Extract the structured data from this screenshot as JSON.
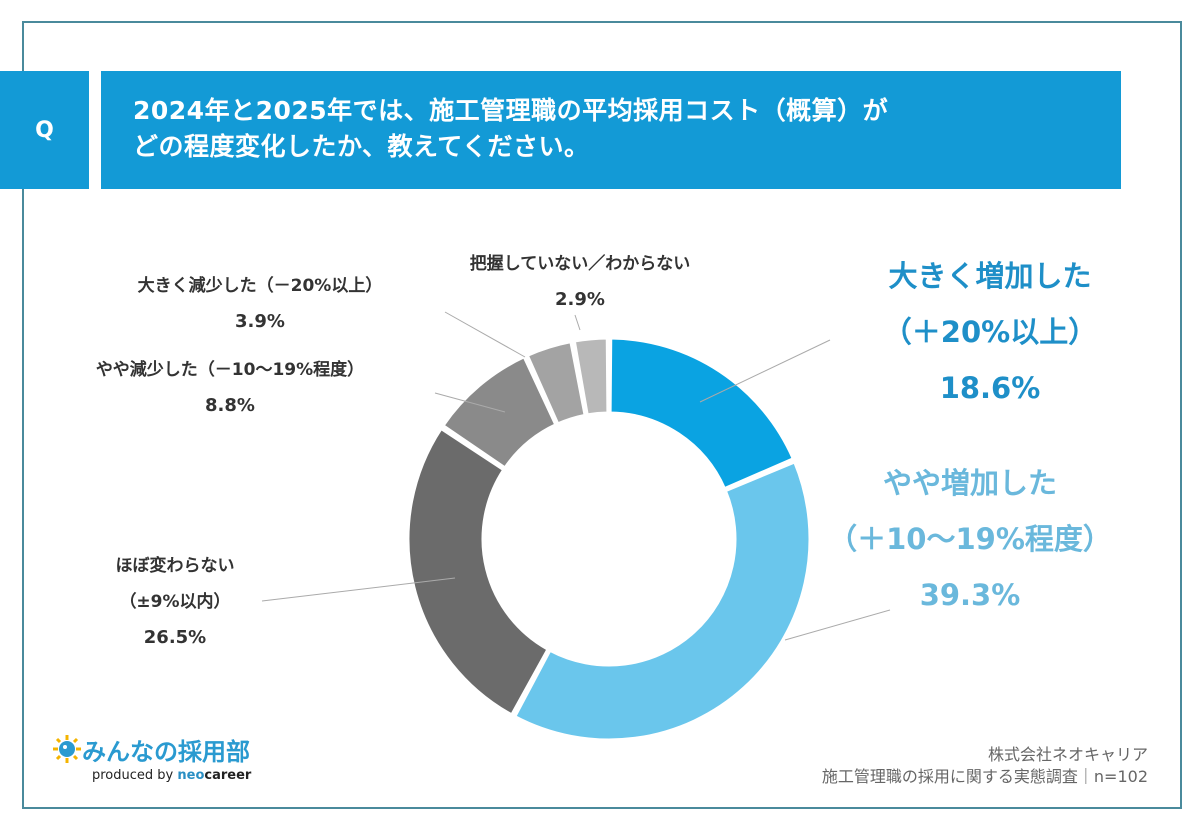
{
  "header": {
    "q_label": "Q",
    "title_lines": [
      "2024年と2025年では、施工管理職の平均採用コスト（概算）が",
      "どの程度変化したか、教えてください。"
    ]
  },
  "colors": {
    "accent": "#139ad6",
    "frame": "#4a8a9c"
  },
  "chart_data": {
    "type": "pie",
    "variant": "donut",
    "title": "2024年と2025年では、施工管理職の平均採用コスト（概算）がどの程度変化したか、教えてください。",
    "unit": "%",
    "start_angle": "12 o'clock, clockwise",
    "slices": [
      {
        "label_lines": [
          "大きく増加した",
          "（＋20%以上）"
        ],
        "value": 18.6,
        "value_label": "18.6%",
        "color": "#0aa3e2",
        "text_color": "#1e8fc8"
      },
      {
        "label_lines": [
          "やや増加した",
          "（＋10〜19%程度）"
        ],
        "value": 39.3,
        "value_label": "39.3%",
        "color": "#6ac6ec",
        "text_color": "#6ab8dc"
      },
      {
        "label_lines": [
          "ほぼ変わらない",
          "（±9%以内）"
        ],
        "value": 26.5,
        "value_label": "26.5%",
        "color": "#6b6b6b",
        "text_color": "#333333"
      },
      {
        "label_lines": [
          "やや減少した（－10〜19%程度）"
        ],
        "value": 8.8,
        "value_label": "8.8%",
        "color": "#8a8a8a",
        "text_color": "#333333"
      },
      {
        "label_lines": [
          "大きく減少した（－20%以上）"
        ],
        "value": 3.9,
        "value_label": "3.9%",
        "color": "#a3a3a3",
        "text_color": "#333333"
      },
      {
        "label_lines": [
          "把握していない／わからない"
        ],
        "value": 2.9,
        "value_label": "2.9%",
        "color": "#b8b8b8",
        "text_color": "#333333"
      }
    ]
  },
  "footer": {
    "logo_name": "みんなの採用部",
    "produced_by": "produced by ",
    "brand_neo": "neo",
    "brand_career": "career",
    "company": "株式会社ネオキャリア",
    "survey": "施工管理職の採用に関する実態調査｜n=102"
  }
}
